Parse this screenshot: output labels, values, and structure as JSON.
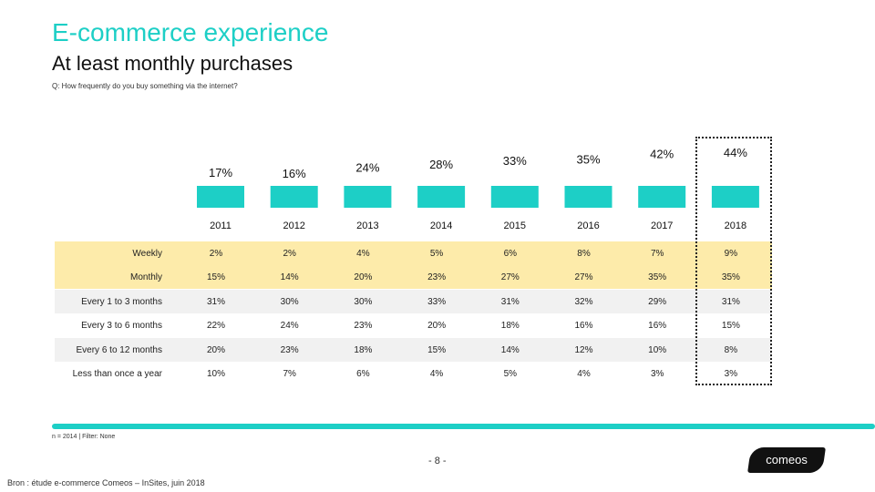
{
  "header": {
    "title": "E-commerce experience",
    "subtitle": "At least monthly purchases",
    "question": "Q: How frequently do you buy something via the internet?"
  },
  "chart_data": {
    "type": "bar",
    "categories": [
      "2011",
      "2012",
      "2013",
      "2014",
      "2015",
      "2016",
      "2017",
      "2018"
    ],
    "values": [
      17,
      16,
      24,
      28,
      33,
      35,
      42,
      44
    ],
    "value_labels": [
      "17%",
      "16%",
      "24%",
      "28%",
      "33%",
      "35%",
      "42%",
      "44%"
    ],
    "bar_color": "#1dcfc6",
    "highlight": "2018"
  },
  "table": {
    "rows": [
      {
        "label": "Weekly",
        "values": [
          "2%",
          "2%",
          "4%",
          "5%",
          "6%",
          "8%",
          "7%",
          "9%"
        ],
        "band": "#fdebaa"
      },
      {
        "label": "Monthly",
        "values": [
          "15%",
          "14%",
          "20%",
          "23%",
          "27%",
          "27%",
          "35%",
          "35%"
        ],
        "band": "#fdebaa"
      },
      {
        "label": "Every 1 to 3 months",
        "values": [
          "31%",
          "30%",
          "30%",
          "33%",
          "31%",
          "32%",
          "29%",
          "31%"
        ],
        "band": "#f1f1f1"
      },
      {
        "label": "Every 3 to 6 months",
        "values": [
          "22%",
          "24%",
          "23%",
          "20%",
          "18%",
          "16%",
          "16%",
          "15%"
        ],
        "band": "#ffffff"
      },
      {
        "label": "Every 6 to 12 months",
        "values": [
          "20%",
          "23%",
          "18%",
          "15%",
          "14%",
          "12%",
          "10%",
          "8%"
        ],
        "band": "#f1f1f1"
      },
      {
        "label": "Less than once a year",
        "values": [
          "10%",
          "7%",
          "6%",
          "4%",
          "5%",
          "4%",
          "3%",
          "3%"
        ],
        "band": "#ffffff"
      }
    ]
  },
  "footer": {
    "footnote": "n = 2014 | Filter: None",
    "page_number": "- 8 -",
    "source": "Bron : étude e-commerce Comeos – InSites, juin 2018",
    "logo_text": "comeos"
  }
}
